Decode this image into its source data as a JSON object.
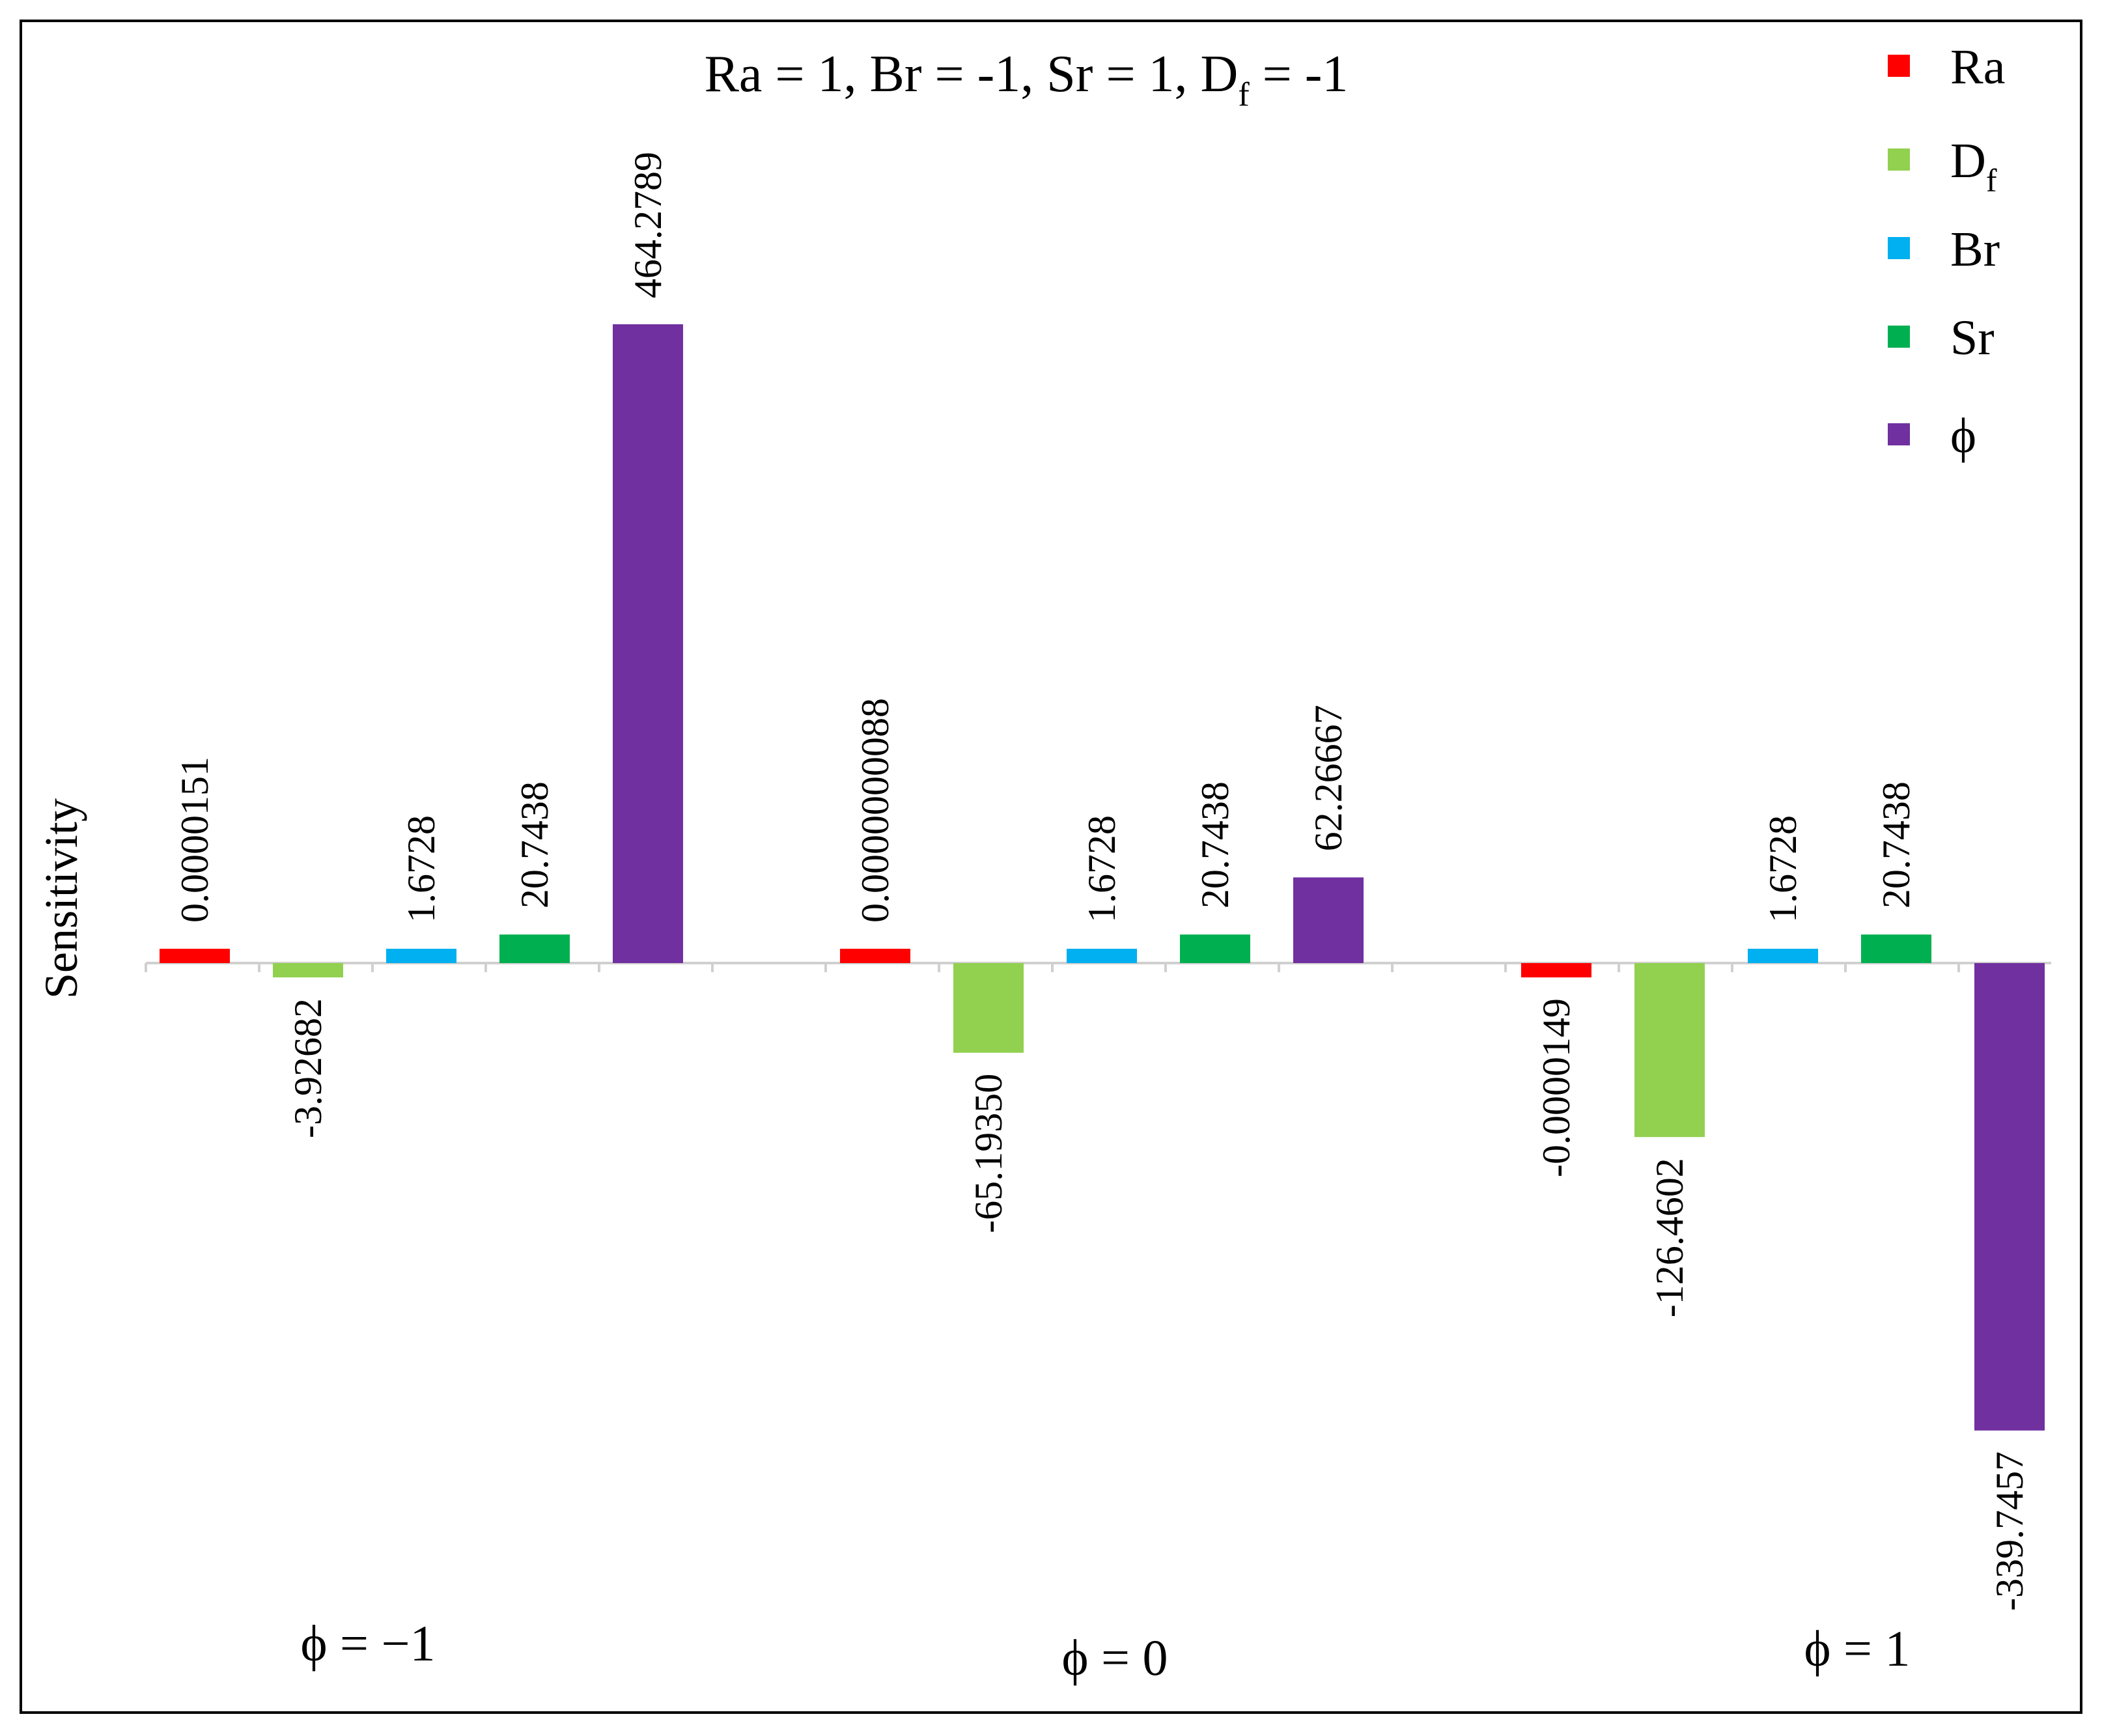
{
  "chart_data": {
    "type": "bar",
    "title": "Ra = 1,  Br = -1, Sr = 1, D",
    "title_subscript": "f",
    "title_tail": " = -1",
    "ylabel": "Sensitivity",
    "xlabel": "",
    "categories": [
      "ϕ = −1",
      "ϕ = 0",
      "ϕ = 1"
    ],
    "series": [
      {
        "name": "Ra",
        "sub": "",
        "color": "#ff0000",
        "values": [
          1.51e-05,
          8.8e-09,
          -1.49e-05
        ],
        "labels": [
          "0.0000151",
          "0.0000000088",
          "-0.0000149"
        ]
      },
      {
        "name": "D",
        "sub": "f",
        "color": "#92d050",
        "values": [
          -3.92682,
          -65.1935,
          -126.4602
        ],
        "labels": [
          "-3.92682",
          "-65.19350",
          "-126.4602"
        ]
      },
      {
        "name": "Br",
        "sub": "",
        "color": "#00b0f0",
        "values": [
          1.6728,
          1.6728,
          1.6728
        ],
        "labels": [
          "1.6728",
          "1.6728",
          "1.6728"
        ]
      },
      {
        "name": "Sr",
        "sub": "",
        "color": "#00b050",
        "values": [
          20.7438,
          20.7438,
          20.7438
        ],
        "labels": [
          "20.7438",
          "20.7438",
          "20.7438"
        ]
      },
      {
        "name": "ϕ",
        "sub": "",
        "color": "#7030a0",
        "values": [
          464.2789,
          62.26667,
          -339.7457
        ],
        "labels": [
          "464.2789",
          "62.26667",
          "-339.7457"
        ]
      }
    ],
    "grid": false,
    "legend": "top-right"
  }
}
